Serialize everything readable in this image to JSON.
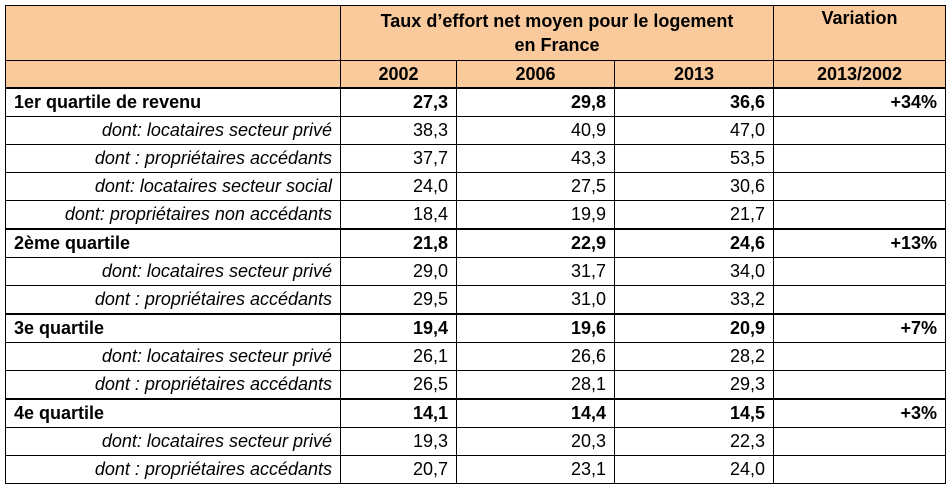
{
  "header": {
    "title_line1": "Taux d’effort net moyen pour le logement",
    "title_line2": "en France",
    "variation": "Variation",
    "years": [
      "2002",
      "2006",
      "2013"
    ],
    "variation_period": "2013/2002"
  },
  "rows": [
    {
      "label": "1er quartile de revenu",
      "v2002": "27,3",
      "v2006": "29,8",
      "v2013": "36,6",
      "variation": "+34%"
    },
    {
      "label": "dont: locataires secteur privé",
      "v2002": "38,3",
      "v2006": "40,9",
      "v2013": "47,0",
      "variation": ""
    },
    {
      "label": "dont : propriétaires accédants",
      "v2002": "37,7",
      "v2006": "43,3",
      "v2013": "53,5",
      "variation": ""
    },
    {
      "label": "dont: locataires secteur social",
      "v2002": "24,0",
      "v2006": "27,5",
      "v2013": "30,6",
      "variation": ""
    },
    {
      "label": "dont: propriétaires non accédants",
      "v2002": "18,4",
      "v2006": "19,9",
      "v2013": "21,7",
      "variation": ""
    },
    {
      "label": "2ème quartile",
      "v2002": "21,8",
      "v2006": "22,9",
      "v2013": "24,6",
      "variation": "+13%"
    },
    {
      "label": "dont: locataires secteur privé",
      "v2002": "29,0",
      "v2006": "31,7",
      "v2013": "34,0",
      "variation": ""
    },
    {
      "label": "dont : propriétaires accédants",
      "v2002": "29,5",
      "v2006": "31,0",
      "v2013": "33,2",
      "variation": ""
    },
    {
      "label": "3e quartile",
      "v2002": "19,4",
      "v2006": "19,6",
      "v2013": "20,9",
      "variation": "+7%"
    },
    {
      "label": "dont: locataires secteur privé",
      "v2002": "26,1",
      "v2006": "26,6",
      "v2013": "28,2",
      "variation": ""
    },
    {
      "label": "dont : propriétaires accédants",
      "v2002": "26,5",
      "v2006": "28,1",
      "v2013": "29,3",
      "variation": ""
    },
    {
      "label": "4e quartile",
      "v2002": "14,1",
      "v2006": "14,4",
      "v2013": "14,5",
      "variation": "+3%"
    },
    {
      "label": "dont: locataires secteur privé",
      "v2002": "19,3",
      "v2006": "20,3",
      "v2013": "22,3",
      "variation": ""
    },
    {
      "label": "dont : propriétaires accédants",
      "v2002": "20,7",
      "v2006": "23,1",
      "v2013": "24,0",
      "variation": ""
    }
  ]
}
